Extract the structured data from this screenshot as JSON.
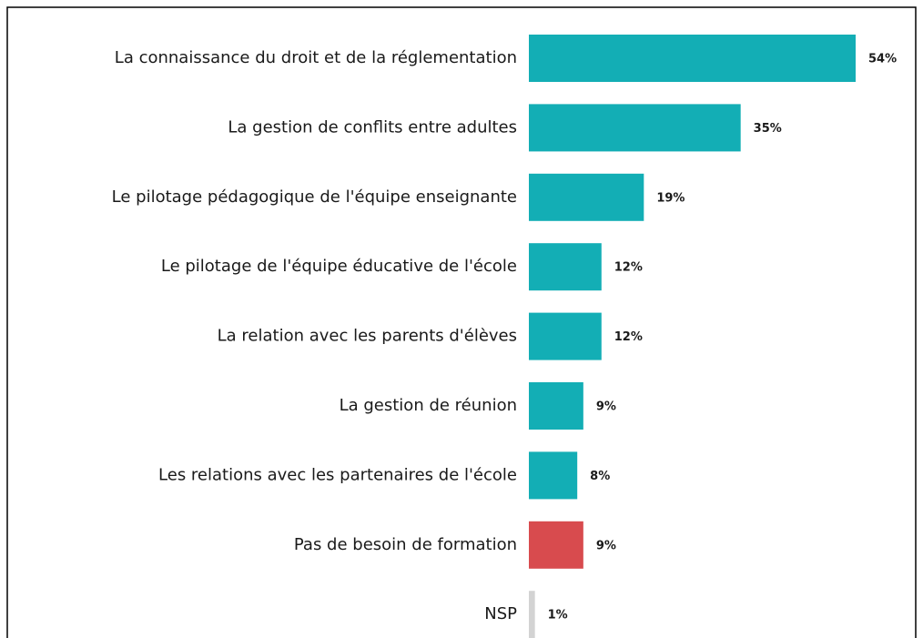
{
  "chart_data": {
    "type": "barh",
    "categories": [
      "La connaissance du droit et de la réglementation",
      "La gestion de conflits entre adultes",
      "Le pilotage pédagogique de l'équipe enseignante",
      "Le pilotage de l'équipe éducative de l'école",
      "La relation avec les parents d'élèves",
      "La gestion de réunion",
      "Les relations avec les partenaires de l'école",
      "Pas de besoin de formation",
      "NSP"
    ],
    "values": [
      54,
      35,
      19,
      12,
      12,
      9,
      8,
      9,
      1
    ],
    "value_labels": [
      "54%",
      "35%",
      "19%",
      "12%",
      "12%",
      "9%",
      "8%",
      "9%",
      "1%"
    ],
    "colors": [
      "#13aeb5",
      "#13aeb5",
      "#13aeb5",
      "#13aeb5",
      "#13aeb5",
      "#13aeb5",
      "#13aeb5",
      "#d84b4e",
      "#d3d3d3"
    ]
  }
}
